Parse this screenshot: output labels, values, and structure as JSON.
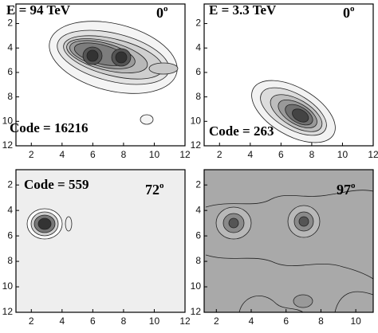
{
  "chart_data": [
    {
      "type": "contour",
      "title": "E = 94 TeV",
      "angle": "0",
      "angle_sup": "o",
      "code": "Code = 16216",
      "xlim": [
        1,
        12
      ],
      "ylim": [
        0.4,
        12
      ],
      "y_inverted": true,
      "xticks": [
        2,
        4,
        6,
        8,
        10,
        12
      ],
      "yticks": [
        2,
        4,
        6,
        8,
        10,
        12
      ],
      "background": "#ffffff"
    },
    {
      "type": "contour",
      "title": "E = 3.3 TeV",
      "angle": "0",
      "angle_sup": "o",
      "code": "Code = 263",
      "xlim": [
        1,
        12
      ],
      "ylim": [
        0.4,
        12
      ],
      "y_inverted": true,
      "xticks": [
        2,
        4,
        6,
        8,
        10,
        12
      ],
      "yticks": [
        2,
        4,
        6,
        8,
        10,
        12
      ],
      "background": "#ffffff"
    },
    {
      "type": "contour",
      "angle": "72",
      "angle_sup": "o",
      "code": "Code = 559",
      "xlim": [
        1,
        12
      ],
      "ylim": [
        0.8,
        12
      ],
      "y_inverted": true,
      "xticks": [
        2,
        4,
        6,
        8,
        10,
        12
      ],
      "yticks": [
        2,
        4,
        6,
        8,
        10,
        12
      ],
      "background": "#eeeeee"
    },
    {
      "type": "contour",
      "angle": "97",
      "angle_sup": "o",
      "xlim": [
        1.3,
        11
      ],
      "ylim": [
        0.8,
        12
      ],
      "y_inverted": true,
      "xticks": [
        2,
        4,
        6,
        8,
        10
      ],
      "yticks": [
        2,
        4,
        6,
        8,
        10,
        12
      ],
      "background": "#a9a9a9"
    }
  ]
}
